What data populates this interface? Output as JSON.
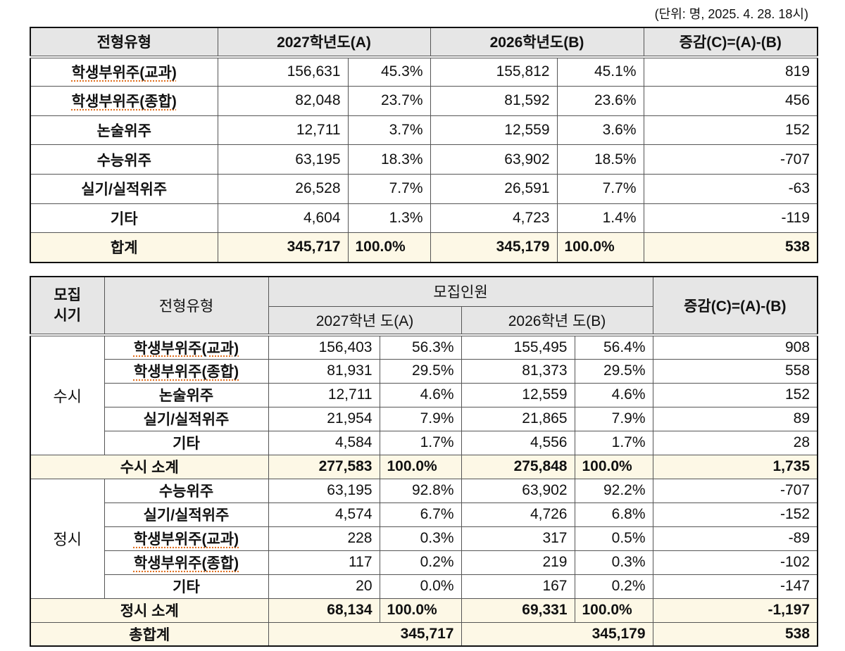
{
  "unit_note": "(단위: 명, 2025. 4. 28. 18시)",
  "table1": {
    "headers": {
      "type": "전형유형",
      "a": "2027학년도(A)",
      "b": "2026학년도(B)",
      "diff": "증감(C)=(A)-(B)"
    },
    "rows": [
      {
        "type": "학생부위주(교과)",
        "a": "156,631",
        "a_pct": "45.3%",
        "b": "155,812",
        "b_pct": "45.1%",
        "diff": "819"
      },
      {
        "type": "학생부위주(종합)",
        "a": "82,048",
        "a_pct": "23.7%",
        "b": "81,592",
        "b_pct": "23.6%",
        "diff": "456"
      },
      {
        "type": "논술위주",
        "a": "12,711",
        "a_pct": "3.7%",
        "b": "12,559",
        "b_pct": "3.6%",
        "diff": "152"
      },
      {
        "type": "수능위주",
        "a": "63,195",
        "a_pct": "18.3%",
        "b": "63,902",
        "b_pct": "18.5%",
        "diff": "-707"
      },
      {
        "type": "실기/실적위주",
        "a": "26,528",
        "a_pct": "7.7%",
        "b": "26,591",
        "b_pct": "7.7%",
        "diff": "-63"
      },
      {
        "type": "기타",
        "a": "4,604",
        "a_pct": "1.3%",
        "b": "4,723",
        "b_pct": "1.4%",
        "diff": "-119"
      }
    ],
    "total": {
      "type": "합계",
      "a": "345,717",
      "a_pct": "100.0%",
      "b": "345,179",
      "b_pct": "100.0%",
      "diff": "538"
    }
  },
  "table2": {
    "headers": {
      "period": "모집\n시기",
      "period_l1": "모집",
      "period_l2": "시기",
      "type": "전형유형",
      "recruit": "모집인원",
      "a": "2027학년 도(A)",
      "b": "2026학년 도(B)",
      "diff": "증감(C)=(A)-(B)"
    },
    "susi": {
      "label": "수시",
      "rows": [
        {
          "type": "학생부위주(교과)",
          "a": "156,403",
          "a_pct": "56.3%",
          "b": "155,495",
          "b_pct": "56.4%",
          "diff": "908"
        },
        {
          "type": "학생부위주(종합)",
          "a": "81,931",
          "a_pct": "29.5%",
          "b": "81,373",
          "b_pct": "29.5%",
          "diff": "558"
        },
        {
          "type": "논술위주",
          "a": "12,711",
          "a_pct": "4.6%",
          "b": "12,559",
          "b_pct": "4.6%",
          "diff": "152"
        },
        {
          "type": "실기/실적위주",
          "a": "21,954",
          "a_pct": "7.9%",
          "b": "21,865",
          "b_pct": "7.9%",
          "diff": "89"
        },
        {
          "type": "기타",
          "a": "4,584",
          "a_pct": "1.7%",
          "b": "4,556",
          "b_pct": "1.7%",
          "diff": "28"
        }
      ],
      "subtotal": {
        "label": "수시 소계",
        "a": "277,583",
        "a_pct": "100.0%",
        "b": "275,848",
        "b_pct": "100.0%",
        "diff": "1,735"
      }
    },
    "jeongsi": {
      "label": "정시",
      "rows": [
        {
          "type": "수능위주",
          "a": "63,195",
          "a_pct": "92.8%",
          "b": "63,902",
          "b_pct": "92.2%",
          "diff": "-707"
        },
        {
          "type": "실기/실적위주",
          "a": "4,574",
          "a_pct": "6.7%",
          "b": "4,726",
          "b_pct": "6.8%",
          "diff": "-152"
        },
        {
          "type": "학생부위주(교과)",
          "a": "228",
          "a_pct": "0.3%",
          "b": "317",
          "b_pct": "0.5%",
          "diff": "-89"
        },
        {
          "type": "학생부위주(종합)",
          "a": "117",
          "a_pct": "0.2%",
          "b": "219",
          "b_pct": "0.3%",
          "diff": "-102"
        },
        {
          "type": "기타",
          "a": "20",
          "a_pct": "0.0%",
          "b": "167",
          "b_pct": "0.2%",
          "diff": "-147"
        }
      ],
      "subtotal": {
        "label": "정시 소계",
        "a": "68,134",
        "a_pct": "100.0%",
        "b": "69,331",
        "b_pct": "100.0%",
        "diff": "-1,197"
      }
    },
    "grand_total": {
      "label": "총합계",
      "a": "345,717",
      "b": "345,179",
      "diff": "538"
    }
  }
}
